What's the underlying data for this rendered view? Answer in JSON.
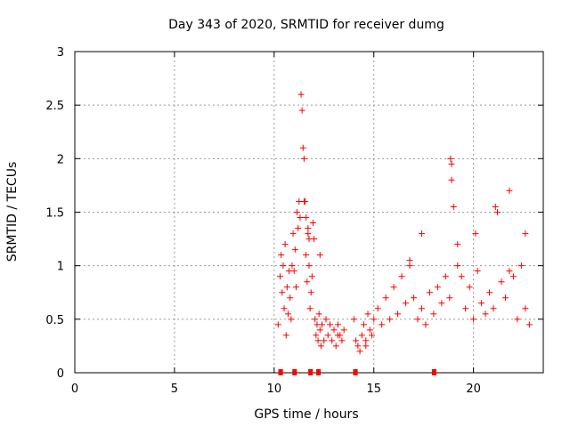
{
  "chart_data": {
    "type": "scatter",
    "title": "Day 343 of 2020, SRMTID for receiver dumg",
    "xlabel": "GPS time / hours",
    "ylabel": "SRMTID / TECUs",
    "xlim": [
      0,
      23.5
    ],
    "ylim": [
      0,
      3
    ],
    "xticks": [
      0,
      5,
      10,
      15,
      20
    ],
    "xtick_labels": [
      "0",
      "5",
      "10",
      "15",
      "20"
    ],
    "yticks": [
      0,
      0.5,
      1,
      1.5,
      2,
      2.5,
      3
    ],
    "ytick_labels": [
      "0",
      "0.5",
      "1",
      "1.5",
      "2",
      "2.5",
      "3"
    ],
    "grid": true,
    "marker": "+",
    "color": "#ff0000",
    "series": [
      {
        "name": "SRMTID",
        "x": [
          10.2,
          10.3,
          10.35,
          10.4,
          10.45,
          10.5,
          10.55,
          10.6,
          10.65,
          10.7,
          10.75,
          10.8,
          10.85,
          10.9,
          10.95,
          11.0,
          11.05,
          11.1,
          11.15,
          11.2,
          11.25,
          11.3,
          11.35,
          11.4,
          11.45,
          11.5,
          11.55,
          11.6,
          11.65,
          11.7,
          11.75,
          11.8,
          11.85,
          11.9,
          11.95,
          12.0,
          12.05,
          12.1,
          12.15,
          12.2,
          12.25,
          12.3,
          12.35,
          12.4,
          12.5,
          12.6,
          12.7,
          12.8,
          12.9,
          13.0,
          13.1,
          13.2,
          13.3,
          13.4,
          13.5,
          14.0,
          14.1,
          14.2,
          14.3,
          14.4,
          14.5,
          14.6,
          14.7,
          14.8,
          14.9,
          15.0,
          15.2,
          15.4,
          15.6,
          15.8,
          16.0,
          16.2,
          16.4,
          16.6,
          16.8,
          17.0,
          17.2,
          17.4,
          17.6,
          17.8,
          18.0,
          18.2,
          18.4,
          18.6,
          18.8,
          18.85,
          18.9,
          19.0,
          19.2,
          19.4,
          19.6,
          19.8,
          20.0,
          20.2,
          20.4,
          20.6,
          20.8,
          21.0,
          21.2,
          21.4,
          21.6,
          21.8,
          22.0,
          22.2,
          22.4,
          22.6,
          22.8,
          11.5,
          11.6,
          11.7,
          11.75,
          12.3,
          13.2,
          14.6,
          16.8,
          17.4,
          18.9,
          19.2,
          20.1,
          21.1,
          21.8,
          22.6
        ],
        "y": [
          0.45,
          0.9,
          1.1,
          0.75,
          1.0,
          0.6,
          1.2,
          0.35,
          0.8,
          0.55,
          0.95,
          0.7,
          0.5,
          1.0,
          1.3,
          0.95,
          1.15,
          0.8,
          1.5,
          1.35,
          1.6,
          1.45,
          2.6,
          2.45,
          2.1,
          2.0,
          1.6,
          1.1,
          0.85,
          1.3,
          1.0,
          0.6,
          0.75,
          0.9,
          1.4,
          1.25,
          0.5,
          0.35,
          0.45,
          0.3,
          0.55,
          0.4,
          0.25,
          0.45,
          0.3,
          0.5,
          0.35,
          0.45,
          0.3,
          0.4,
          0.25,
          0.45,
          0.35,
          0.3,
          0.4,
          0.5,
          0.3,
          0.25,
          0.2,
          0.35,
          0.45,
          0.3,
          0.55,
          0.4,
          0.35,
          0.5,
          0.6,
          0.45,
          0.7,
          0.5,
          0.8,
          0.55,
          0.9,
          0.65,
          1.0,
          0.7,
          0.5,
          0.6,
          0.45,
          0.75,
          0.55,
          0.8,
          0.65,
          0.9,
          0.7,
          2.0,
          1.95,
          1.55,
          1.2,
          0.9,
          0.6,
          0.8,
          0.5,
          0.95,
          0.65,
          0.55,
          0.75,
          0.6,
          1.5,
          0.85,
          0.7,
          1.7,
          0.9,
          0.5,
          1.0,
          0.6,
          0.45,
          1.6,
          1.45,
          1.35,
          1.25,
          1.1,
          0.35,
          0.25,
          1.05,
          1.3,
          1.8,
          1.0,
          1.3,
          1.55,
          0.95,
          1.3
        ]
      }
    ],
    "data_gaps_marker_x": [
      10.3,
      10.35,
      11.0,
      11.05,
      11.8,
      11.85,
      12.2,
      12.25,
      14.05,
      14.1,
      18.0,
      18.05
    ],
    "data_gaps_marker_y": [
      0,
      0,
      0,
      0,
      0,
      0,
      0,
      0,
      0,
      0,
      0,
      0
    ]
  }
}
